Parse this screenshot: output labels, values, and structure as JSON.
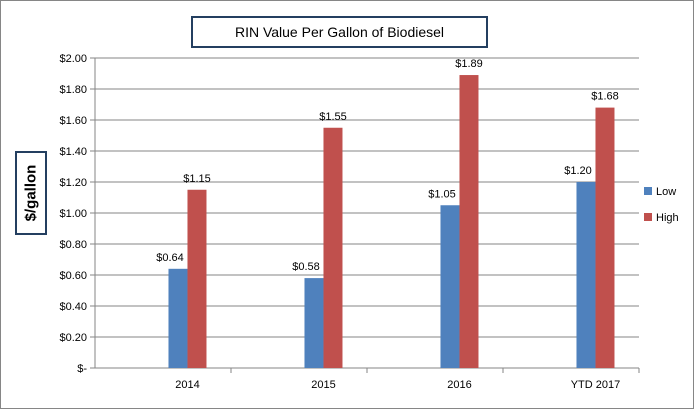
{
  "chart_data": {
    "type": "bar",
    "title": "RIN Value Per Gallon of Biodiesel",
    "ylabel": "$/gallon",
    "xlabel": "",
    "categories": [
      "2014",
      "2015",
      "2016",
      "YTD 2017"
    ],
    "series": [
      {
        "name": "Low",
        "color": "#4f81bd",
        "values": [
          0.64,
          0.58,
          1.05,
          1.2
        ],
        "labels": [
          "$0.64",
          "$0.58",
          "$1.05",
          "$1.20"
        ]
      },
      {
        "name": "High",
        "color": "#c0504d",
        "values": [
          1.15,
          1.55,
          1.89,
          1.68
        ],
        "labels": [
          "$1.15",
          "$1.55",
          "$1.89",
          "$1.68"
        ]
      }
    ],
    "ylim": [
      0,
      2.0
    ],
    "yticks": [
      0,
      0.2,
      0.4,
      0.6,
      0.8,
      1.0,
      1.2,
      1.4,
      1.6,
      1.8,
      2.0
    ],
    "ytick_labels": [
      "$-",
      "$0.20",
      "$0.40",
      "$0.60",
      "$0.80",
      "$1.00",
      "$1.20",
      "$1.40",
      "$1.60",
      "$1.80",
      "$2.00"
    ],
    "grid": true,
    "legend_position": "right"
  }
}
